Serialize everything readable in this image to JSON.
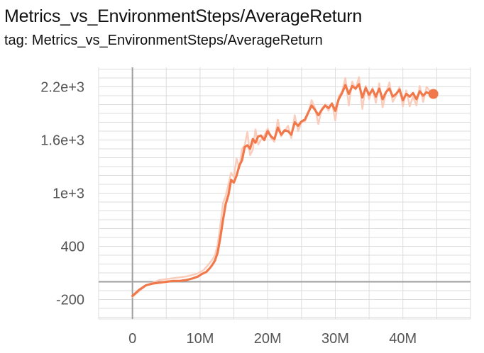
{
  "header": {
    "title": "Metrics_vs_EnvironmentSteps/AverageReturn",
    "subtitle": "tag: Metrics_vs_EnvironmentSteps/AverageReturn"
  },
  "colors": {
    "smoothed_line": "#f0784a",
    "raw_line": "#f9c8b6",
    "grid": "#dddddd",
    "zero_axis": "#9e9e9e",
    "tick_text": "#555555"
  },
  "chart_data": {
    "type": "line",
    "title": "Metrics_vs_EnvironmentSteps/AverageReturn",
    "xlabel": "",
    "ylabel": "",
    "xlim": [
      -5000000,
      50000000
    ],
    "ylim": [
      -420,
      2420
    ],
    "x_ticks": [
      0,
      10000000,
      20000000,
      30000000,
      40000000
    ],
    "x_tick_labels": [
      "0",
      "10M",
      "20M",
      "30M",
      "40M"
    ],
    "y_ticks": [
      -200,
      400,
      1000,
      1600,
      2200
    ],
    "y_tick_labels": [
      "-200",
      "400",
      "1e+3",
      "1.6e+3",
      "2.2e+3"
    ],
    "grid": true,
    "series": [
      {
        "role": "raw",
        "x": [
          0,
          2000000,
          4000000,
          6000000,
          8000000,
          9500000,
          10500000,
          11200000,
          11800000,
          12200000,
          12600000,
          13000000,
          13400000,
          13800000,
          14200000,
          14600000,
          15000000,
          15400000,
          15800000,
          16200000,
          16600000,
          17000000,
          17400000,
          17800000,
          18200000,
          18600000,
          19000000,
          19500000,
          20000000,
          20500000,
          21000000,
          21500000,
          22000000,
          22500000,
          23000000,
          23500000,
          24000000,
          24500000,
          25000000,
          25500000,
          26000000,
          26500000,
          27000000,
          27500000,
          28000000,
          28500000,
          29000000,
          29500000,
          30000000,
          30500000,
          31000000,
          31500000,
          32000000,
          32500000,
          33000000,
          33500000,
          34000000,
          34500000,
          35000000,
          35500000,
          36000000,
          36500000,
          37000000,
          37500000,
          38000000,
          38500000,
          39000000,
          39500000,
          40000000,
          40500000,
          41000000,
          41500000,
          42000000,
          42500000,
          43000000,
          43500000,
          44000000,
          44500000
        ],
        "values": [
          -170,
          -40,
          20,
          40,
          60,
          90,
          130,
          190,
          250,
          300,
          420,
          640,
          890,
          970,
          1100,
          1230,
          1180,
          1390,
          1280,
          1500,
          1540,
          1690,
          1430,
          1490,
          1720,
          1550,
          1600,
          1650,
          1730,
          1620,
          1580,
          1830,
          1640,
          1700,
          1760,
          1620,
          1880,
          1700,
          1800,
          1810,
          1900,
          2050,
          1960,
          1780,
          1950,
          2000,
          1930,
          2020,
          1820,
          2090,
          2150,
          2300,
          1990,
          2260,
          2170,
          2310,
          1950,
          2210,
          2060,
          2190,
          2020,
          2240,
          1970,
          2130,
          2250,
          2030,
          2100,
          2200,
          1980,
          2160,
          1980,
          2090,
          1990,
          2210,
          2030,
          2200,
          2150,
          2120
        ]
      },
      {
        "role": "smoothed",
        "x": [
          0,
          1000000,
          2000000,
          3000000,
          4000000,
          5000000,
          6000000,
          7000000,
          8000000,
          9000000,
          9700000,
          10300000,
          10900000,
          11400000,
          11800000,
          12200000,
          12600000,
          13000000,
          13400000,
          13800000,
          14200000,
          14600000,
          15000000,
          15400000,
          15800000,
          16200000,
          16600000,
          17000000,
          17400000,
          17800000,
          18200000,
          18600000,
          19000000,
          19500000,
          20000000,
          20500000,
          21000000,
          21500000,
          22000000,
          22500000,
          23000000,
          23500000,
          24000000,
          24500000,
          25000000,
          25500000,
          26000000,
          26500000,
          27000000,
          27500000,
          28000000,
          28500000,
          29000000,
          29500000,
          30000000,
          30500000,
          31000000,
          31500000,
          32000000,
          32500000,
          33000000,
          33500000,
          34000000,
          34500000,
          35000000,
          35500000,
          36000000,
          36500000,
          37000000,
          37500000,
          38000000,
          38500000,
          39000000,
          39500000,
          40000000,
          40500000,
          41000000,
          41500000,
          42000000,
          42500000,
          43000000,
          43500000,
          44000000,
          44500000
        ],
        "values": [
          -160,
          -90,
          -40,
          -20,
          -10,
          0,
          10,
          10,
          20,
          40,
          60,
          90,
          110,
          150,
          190,
          240,
          330,
          500,
          700,
          880,
          980,
          1150,
          1120,
          1200,
          1310,
          1370,
          1520,
          1540,
          1500,
          1610,
          1570,
          1640,
          1650,
          1600,
          1700,
          1640,
          1610,
          1740,
          1660,
          1710,
          1700,
          1660,
          1800,
          1760,
          1810,
          1830,
          1910,
          1990,
          1940,
          1880,
          1940,
          1990,
          1960,
          2010,
          1930,
          2060,
          2130,
          2220,
          2120,
          2210,
          2180,
          2230,
          2080,
          2190,
          2110,
          2170,
          2090,
          2180,
          2060,
          2140,
          2180,
          2090,
          2120,
          2170,
          2050,
          2120,
          2090,
          2130,
          2060,
          2150,
          2100,
          2140,
          2120,
          2120
        ]
      }
    ],
    "endpoint": {
      "x": 44500000,
      "y": 2120
    }
  }
}
